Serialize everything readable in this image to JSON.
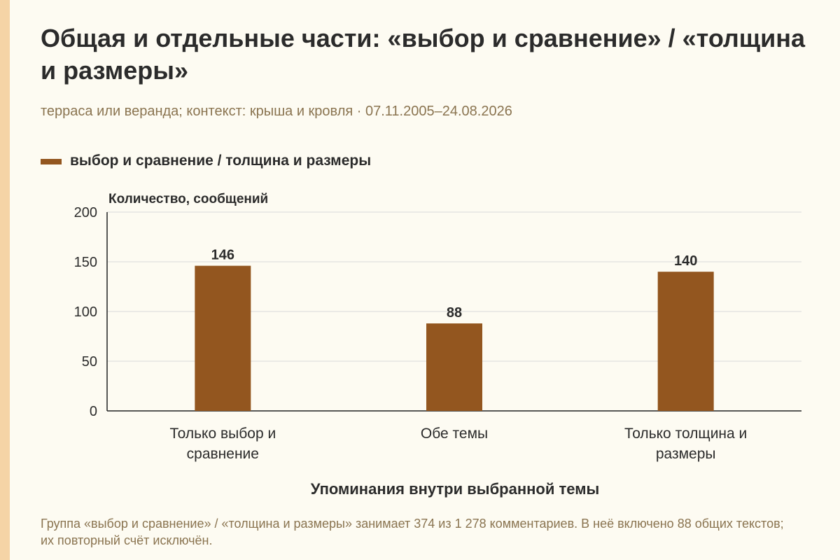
{
  "header": {
    "title": "Общая и отдельные части: «выбор и сравнение» / «толщина и размеры»",
    "subtitle": "терраса или веранда; контекст: крыша и кровля · 07.11.2005–24.08.2026"
  },
  "footnote": "Группа «выбор и сравнение» / «толщина и размеры» занимает 374 из 1 278 комментариев. В неё включено 88 общих текстов; их повторный счёт исключён.",
  "colors": {
    "bar": "#93561f",
    "grid": "#d9d9d9",
    "axis": "#222222",
    "stripe": "#f5d4a6"
  },
  "chart_data": {
    "type": "bar",
    "categories": [
      "Только выбор и сравнение",
      "Обе темы",
      "Только толщина и размеры"
    ],
    "category_lines": [
      [
        "Только выбор и",
        "сравнение"
      ],
      [
        "Обе темы"
      ],
      [
        "Только толщина и",
        "размеры"
      ]
    ],
    "series": [
      {
        "name": "выбор и сравнение / толщина и размеры",
        "values": [
          146,
          88,
          140
        ]
      }
    ],
    "xlabel": "Упоминания внутри выбранной темы",
    "ylabel": "Количество, сообщений",
    "ylim": [
      0,
      200
    ],
    "yticks": [
      0,
      50,
      100,
      150,
      200
    ],
    "grid": true,
    "legend_position": "top-left"
  }
}
